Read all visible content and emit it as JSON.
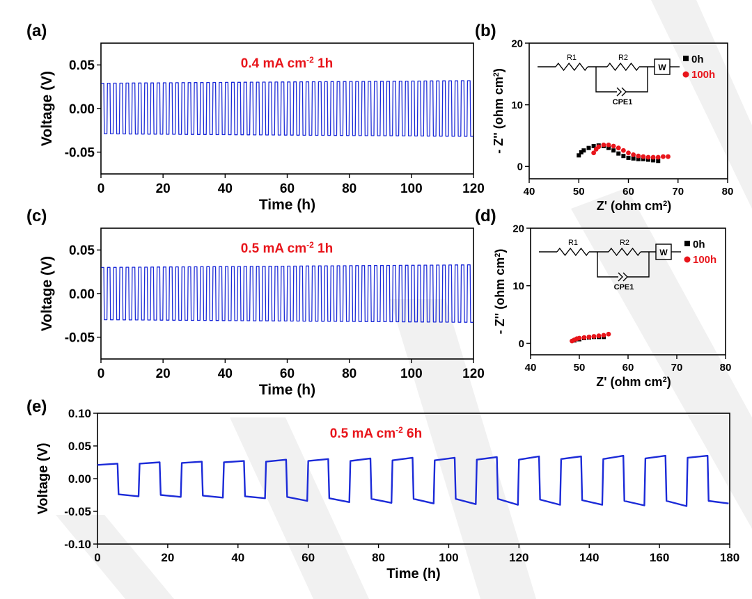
{
  "chart_data": [
    {
      "id": "a",
      "panel_label": "(a)",
      "type": "line",
      "xlabel": "Time (h)",
      "ylabel": "Voltage (V)",
      "xlim": [
        0,
        120
      ],
      "ylim": [
        -0.075,
        0.075
      ],
      "xticks": [
        0,
        20,
        40,
        60,
        80,
        100,
        120
      ],
      "yticks": [
        0.05,
        0.0,
        -0.05
      ],
      "ytick_labels": [
        "0.05",
        "0.00",
        "-0.05"
      ],
      "annotation": {
        "main": "0.4 mA cm",
        "sup": "-2",
        "tail": "1h"
      },
      "color": "#1c2bd8",
      "series": [
        {
          "period_h": 2,
          "half_h": 1,
          "v_start": 0.029,
          "v_end": 0.032
        }
      ]
    },
    {
      "id": "b",
      "panel_label": "(b)",
      "type": "scatter",
      "xlabel": "Z' (ohm cm",
      "xlabel_sup": "2",
      "xlabel_tail": ")",
      "ylabel": "- Z'' (ohm cm",
      "ylabel_sup": "2",
      "ylabel_tail": ")",
      "xlim": [
        40,
        80
      ],
      "ylim": [
        -2,
        20
      ],
      "xticks": [
        40,
        50,
        60,
        70,
        80
      ],
      "yticks": [
        0,
        10,
        20
      ],
      "circuit": {
        "r1": "R1",
        "r2": "R2",
        "cpe": "CPE1",
        "w": "W"
      },
      "series": [
        {
          "name": "0h",
          "color": "#000000",
          "points": [
            [
              50,
              1.8
            ],
            [
              50.5,
              2.3
            ],
            [
              51,
              2.6
            ],
            [
              52,
              3.0
            ],
            [
              53,
              3.3
            ],
            [
              54,
              3.4
            ],
            [
              55,
              3.3
            ],
            [
              56,
              3.0
            ],
            [
              57,
              2.6
            ],
            [
              58,
              2.1
            ],
            [
              59,
              1.7
            ],
            [
              60,
              1.4
            ],
            [
              61,
              1.3
            ],
            [
              62,
              1.2
            ],
            [
              63,
              1.2
            ],
            [
              64,
              1.1
            ],
            [
              65,
              1.0
            ],
            [
              66,
              0.9
            ]
          ]
        },
        {
          "name": "100h",
          "color": "#e8151b",
          "points": [
            [
              53,
              2.2
            ],
            [
              53.5,
              2.8
            ],
            [
              54,
              3.2
            ],
            [
              55,
              3.5
            ],
            [
              56,
              3.5
            ],
            [
              57,
              3.3
            ],
            [
              58,
              3.0
            ],
            [
              59,
              2.6
            ],
            [
              60,
              2.2
            ],
            [
              61,
              1.9
            ],
            [
              62,
              1.7
            ],
            [
              63,
              1.6
            ],
            [
              64,
              1.5
            ],
            [
              65,
              1.5
            ],
            [
              66,
              1.5
            ],
            [
              67,
              1.6
            ],
            [
              68,
              1.6
            ]
          ]
        }
      ]
    },
    {
      "id": "c",
      "panel_label": "(c)",
      "type": "line",
      "xlabel": "Time (h)",
      "ylabel": "Voltage (V)",
      "xlim": [
        0,
        120
      ],
      "ylim": [
        -0.075,
        0.075
      ],
      "xticks": [
        0,
        20,
        40,
        60,
        80,
        100,
        120
      ],
      "yticks": [
        0.05,
        0.0,
        -0.05
      ],
      "ytick_labels": [
        "0.05",
        "0.00",
        "-0.05"
      ],
      "annotation": {
        "main": "0.5 mA cm",
        "sup": "-2",
        "tail": "1h"
      },
      "color": "#1c2bd8",
      "series": [
        {
          "period_h": 2,
          "half_h": 1,
          "v_start": 0.03,
          "v_end": 0.033
        }
      ]
    },
    {
      "id": "d",
      "panel_label": "(d)",
      "type": "scatter",
      "xlabel": "Z' (ohm cm",
      "xlabel_sup": "2",
      "xlabel_tail": ")",
      "ylabel": "- Z'' (ohm cm",
      "ylabel_sup": "2",
      "ylabel_tail": ")",
      "xlim": [
        40,
        80
      ],
      "ylim": [
        -2,
        20
      ],
      "xticks": [
        40,
        50,
        60,
        70,
        80
      ],
      "yticks": [
        0,
        10,
        20
      ],
      "circuit": {
        "r1": "R1",
        "r2": "R2",
        "cpe": "CPE1",
        "w": "W"
      },
      "series": [
        {
          "name": "0h",
          "color": "#000000",
          "points": [
            [
              49,
              0.5
            ],
            [
              50,
              0.7
            ],
            [
              51,
              0.9
            ],
            [
              52,
              1.0
            ],
            [
              53,
              1.1
            ],
            [
              54,
              1.1
            ],
            [
              55,
              1.1
            ]
          ]
        },
        {
          "name": "100h",
          "color": "#e8151b",
          "points": [
            [
              48.5,
              0.4
            ],
            [
              49,
              0.6
            ],
            [
              49.5,
              0.8
            ],
            [
              50,
              0.9
            ],
            [
              51,
              1.0
            ],
            [
              52,
              1.1
            ],
            [
              53,
              1.2
            ],
            [
              54,
              1.3
            ],
            [
              55,
              1.4
            ],
            [
              56,
              1.6
            ]
          ]
        }
      ]
    },
    {
      "id": "e",
      "panel_label": "(e)",
      "type": "line",
      "xlabel": "Time (h)",
      "ylabel": "Voltage (V)",
      "xlim": [
        0,
        180
      ],
      "ylim": [
        -0.1,
        0.1
      ],
      "xticks": [
        0,
        20,
        40,
        60,
        80,
        100,
        120,
        140,
        160,
        180
      ],
      "yticks": [
        0.1,
        0.05,
        0.0,
        -0.05,
        -0.1
      ],
      "ytick_labels": [
        "0.10",
        "0.05",
        "0.00",
        "-0.05",
        "-0.10"
      ],
      "annotation": {
        "main": "0.5 mA cm",
        "sup": "-2",
        "tail": "6h"
      },
      "color": "#1c2bd8",
      "series": [
        {
          "first_switch_h": 6,
          "half_h": 6,
          "positive_levels": [
            [
              0.021,
              0.023
            ],
            [
              0.023,
              0.025
            ],
            [
              0.024,
              0.026
            ],
            [
              0.025,
              0.027
            ],
            [
              0.026,
              0.029
            ],
            [
              0.027,
              0.03
            ],
            [
              0.027,
              0.031
            ],
            [
              0.028,
              0.032
            ],
            [
              0.028,
              0.032
            ],
            [
              0.029,
              0.033
            ],
            [
              0.029,
              0.034
            ],
            [
              0.03,
              0.034
            ],
            [
              0.03,
              0.035
            ],
            [
              0.031,
              0.035
            ],
            [
              0.032,
              0.035
            ]
          ],
          "negative_levels": [
            [
              -0.024,
              -0.027
            ],
            [
              -0.025,
              -0.028
            ],
            [
              -0.026,
              -0.029
            ],
            [
              -0.027,
              -0.03
            ],
            [
              -0.028,
              -0.034
            ],
            [
              -0.03,
              -0.036
            ],
            [
              -0.031,
              -0.037
            ],
            [
              -0.031,
              -0.038
            ],
            [
              -0.031,
              -0.039
            ],
            [
              -0.031,
              -0.04
            ],
            [
              -0.032,
              -0.04
            ],
            [
              -0.033,
              -0.04
            ],
            [
              -0.034,
              -0.041
            ],
            [
              -0.034,
              -0.042
            ],
            [
              -0.034,
              -0.038
            ]
          ]
        }
      ]
    }
  ]
}
